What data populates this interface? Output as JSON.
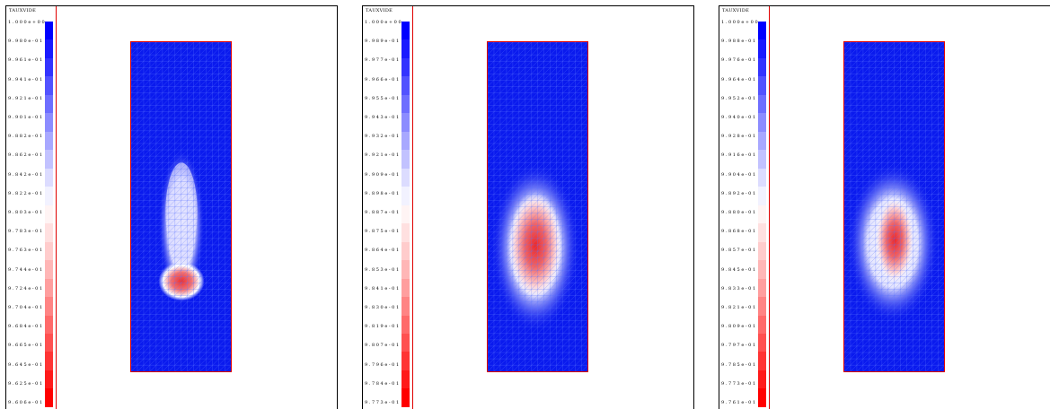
{
  "colors": {
    "field_blue": "#0a1aee",
    "highlight_red": "#ee2020",
    "mesh_line": "#5a74ff",
    "boundary": "#e00000"
  },
  "panels": [
    {
      "title": "TAUXVIDE",
      "labels": [
        "1.000e+00",
        "9.980e-01",
        "9.961e-01",
        "9.941e-01",
        "9.921e-01",
        "9.901e-01",
        "9.882e-01",
        "9.862e-01",
        "9.842e-01",
        "9.822e-01",
        "9.803e-01",
        "9.783e-01",
        "9.763e-01",
        "9.744e-01",
        "9.724e-01",
        "9.704e-01",
        "9.684e-01",
        "9.665e-01",
        "9.645e-01",
        "9.625e-01",
        "9.606e-01"
      ]
    },
    {
      "title": "TAUXVIDE",
      "labels": [
        "1.000e+00",
        "9.989e-01",
        "9.977e-01",
        "9.966e-01",
        "9.955e-01",
        "9.943e-01",
        "9.932e-01",
        "9.921e-01",
        "9.909e-01",
        "9.898e-01",
        "9.887e-01",
        "9.875e-01",
        "9.864e-01",
        "9.853e-01",
        "9.841e-01",
        "9.830e-01",
        "9.819e-01",
        "9.807e-01",
        "9.796e-01",
        "9.784e-01",
        "9.773e-01"
      ]
    },
    {
      "title": "TAUXVIDE",
      "labels": [
        "1.000e+00",
        "9.988e-01",
        "9.976e-01",
        "9.964e-01",
        "9.952e-01",
        "9.940e-01",
        "9.928e-01",
        "9.916e-01",
        "9.904e-01",
        "9.892e-01",
        "9.880e-01",
        "9.868e-01",
        "9.857e-01",
        "9.845e-01",
        "9.833e-01",
        "9.821e-01",
        "9.809e-01",
        "9.797e-01",
        "9.785e-01",
        "9.773e-01",
        "9.761e-01"
      ]
    }
  ]
}
